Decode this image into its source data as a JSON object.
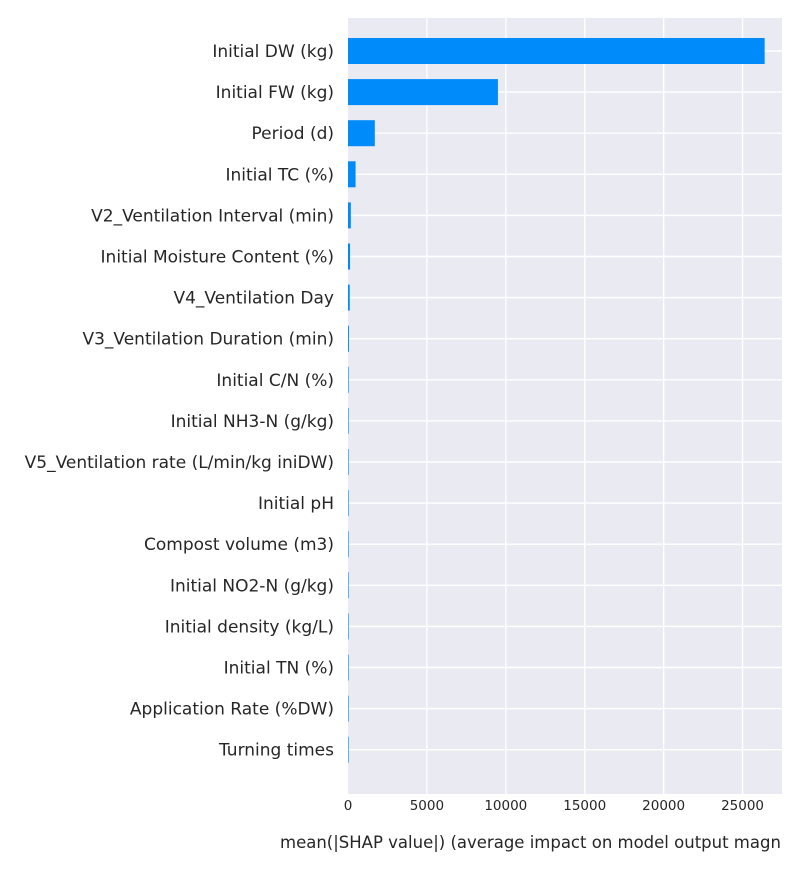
{
  "chart_data": {
    "type": "bar",
    "orientation": "horizontal",
    "title": "",
    "xlabel": "mean(|SHAP value|) (average impact on model output magn",
    "ylabel": "",
    "xlim": [
      0,
      27500
    ],
    "xticks": [
      0,
      5000,
      10000,
      15000,
      20000,
      25000
    ],
    "xtick_labels": [
      "0",
      "5000",
      "10000",
      "15000",
      "20000",
      "25000"
    ],
    "grid": true,
    "categories": [
      "Initial DW (kg)",
      "Initial FW (kg)",
      "Period (d)",
      "Initial TC (%)",
      "V2_Ventilation Interval (min)",
      "Initial Moisture Content (%)",
      "V4_Ventilation Day",
      "V3_Ventilation Duration (min)",
      "Initial C/N (%)",
      "Initial NH3-N (g/kg)",
      "V5_Ventilation rate (L/min/kg iniDW)",
      "Initial pH",
      "Compost volume (m3)",
      "Initial NO2-N (g/kg)",
      "Initial density (kg/L)",
      "Initial TN (%)",
      "Application Rate (%DW)",
      "Turning times"
    ],
    "values": [
      26400,
      9500,
      1700,
      480,
      180,
      130,
      110,
      60,
      40,
      25,
      15,
      10,
      8,
      6,
      5,
      4,
      3,
      2
    ],
    "colors": {
      "bar": "#008bfb",
      "plot_bg": "#eaeaf2",
      "grid": "#ffffff",
      "text": "#262626"
    }
  }
}
